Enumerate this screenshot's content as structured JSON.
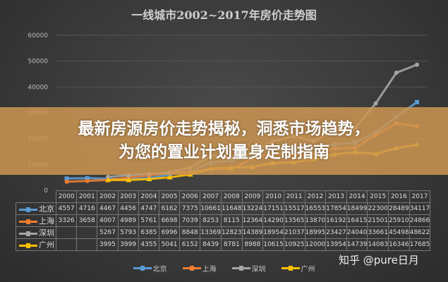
{
  "chart_data": {
    "type": "line",
    "title": "一线城市2002~2017年房价走势图",
    "categories": [
      "2000",
      "2001",
      "2002",
      "2003",
      "2004",
      "2005",
      "2006",
      "2007",
      "2008",
      "2009",
      "2010",
      "2011",
      "2012",
      "2013",
      "2014",
      "2015",
      "2016",
      "2017"
    ],
    "ylim": [
      0,
      60000
    ],
    "yticks": [
      "0",
      "10000",
      "20000",
      "30000",
      "40000",
      "50000",
      "60000"
    ],
    "grid": true,
    "legend_placement": "bottom",
    "series": [
      {
        "name": "北京",
        "color": "#5b9bd5",
        "values": [
          4557,
          4716,
          4467,
          4456,
          4747,
          6162,
          7375,
          10661,
          11648,
          13224,
          17151,
          15517,
          16553,
          17854,
          18499,
          22300,
          28489,
          34117
        ]
      },
      {
        "name": "上海",
        "color": "#ed7d31",
        "values": [
          3326,
          3658,
          4007,
          4989,
          5761,
          6698,
          7039,
          8253,
          8115,
          12364,
          14290,
          13565,
          13870,
          16192,
          16415,
          21501,
          25910,
          24866
        ]
      },
      {
        "name": "深圳",
        "color": "#a5a5a5",
        "values": [
          null,
          null,
          5267,
          5793,
          6385,
          6996,
          8848,
          13369,
          12823,
          14389,
          18954,
          21037,
          18995,
          23427,
          24040,
          33661,
          45498,
          48622
        ]
      },
      {
        "name": "广州",
        "color": "#ffc000",
        "values": [
          null,
          null,
          3995,
          3999,
          4355,
          5041,
          6152,
          8439,
          8781,
          8988,
          10615,
          10925,
          12000,
          13954,
          14739,
          14083,
          16346,
          17685
        ]
      }
    ]
  },
  "banner": {
    "line1": "最新房源房价走势揭秘，洞悉市场趋势，",
    "line2": "为您的置业计划量身定制指南"
  },
  "watermark": "知乎 @pure日月"
}
